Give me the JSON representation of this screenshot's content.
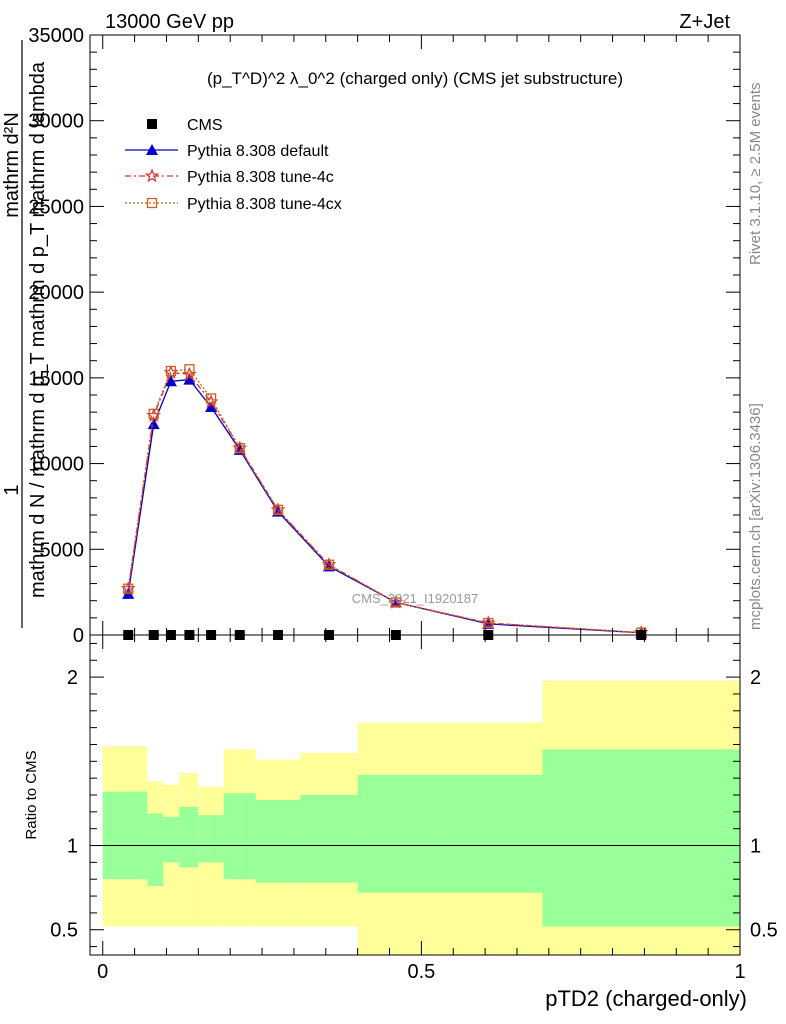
{
  "header": {
    "left": "13000 GeV pp",
    "right": "Z+Jet"
  },
  "side": {
    "rivet": "Rivet 3.1.10, ≥ 2.5M events",
    "mcplots": "mcplots.cern.ch [arXiv:1306.3436]"
  },
  "chart_data": {
    "type": "line",
    "title": "(p_T^D)^2 λ_0^2 (charged only) (CMS jet substructure)",
    "watermark": "CMS_2021_I1920187",
    "xlabel": "pTD2 (charged-only)",
    "ylabel_top": "1",
    "ylabel_bottom": "mathrm d N / mathrm d p_T mathrm d p_T mathrm d lambda",
    "ylabel_numerator": "mathrm d²N",
    "ylabel_denominator": "mathrm d p_T mathrm d lambda",
    "ratio_ylabel": "Ratio to CMS",
    "xlim": [
      -0.02,
      1.0
    ],
    "ylim": [
      0,
      35000
    ],
    "ratio_ylim": [
      0.35,
      2.25
    ],
    "x_ticks": [
      "0",
      "0.5",
      "1"
    ],
    "y_ticks": [
      "0",
      "5000",
      "10000",
      "15000",
      "20000",
      "25000",
      "30000",
      "35000"
    ],
    "ratio_ticks": [
      "0.5",
      "1",
      "2"
    ],
    "x": [
      0.04,
      0.08,
      0.107,
      0.136,
      0.17,
      0.215,
      0.275,
      0.355,
      0.46,
      0.605,
      0.845
    ],
    "bin_edges": [
      0.0,
      0.07,
      0.095,
      0.12,
      0.15,
      0.19,
      0.24,
      0.31,
      0.4,
      0.52,
      0.69,
      1.0
    ],
    "series": [
      {
        "name": "CMS",
        "color": "#000000",
        "marker": "square",
        "values": [
          0,
          0,
          0,
          0,
          0,
          0,
          0,
          0,
          0,
          0,
          0
        ]
      },
      {
        "name": "Pythia 8.308 default",
        "color": "#0000cc",
        "marker": "triangle",
        "dash": "solid",
        "values": [
          2400,
          12300,
          14800,
          14900,
          13300,
          10800,
          7200,
          4000,
          1900,
          650,
          130
        ]
      },
      {
        "name": "Pythia 8.308 tune-4c",
        "color": "#e03030",
        "marker": "star",
        "dash": "6,3,2,3",
        "values": [
          2700,
          12800,
          15300,
          15200,
          13600,
          10900,
          7300,
          4100,
          1900,
          700,
          140
        ]
      },
      {
        "name": "Pythia 8.308 tune-4cx",
        "color": "#c86020",
        "marker": "open-square",
        "dash": "2,2",
        "values": [
          2700,
          12900,
          15400,
          15500,
          13800,
          10900,
          7300,
          4100,
          1900,
          700,
          140
        ]
      }
    ],
    "ratio_bands": {
      "green_low": [
        0.8,
        0.76,
        0.9,
        0.87,
        0.9,
        0.8,
        0.78,
        0.78,
        0.72,
        0.72,
        0.52
      ],
      "green_high": [
        1.32,
        1.19,
        1.17,
        1.23,
        1.18,
        1.31,
        1.27,
        1.3,
        1.42,
        1.42,
        1.57
      ],
      "yellow_low": [
        0.52,
        0.52,
        0.52,
        0.52,
        0.52,
        0.52,
        0.52,
        0.52,
        0.35,
        0.35,
        0.35
      ],
      "yellow_high": [
        1.59,
        1.38,
        1.36,
        1.43,
        1.35,
        1.57,
        1.51,
        1.55,
        1.73,
        1.73,
        1.98
      ]
    },
    "colors": {
      "green": "#99ff99",
      "yellow": "#ffff99",
      "frame": "#000000"
    }
  }
}
